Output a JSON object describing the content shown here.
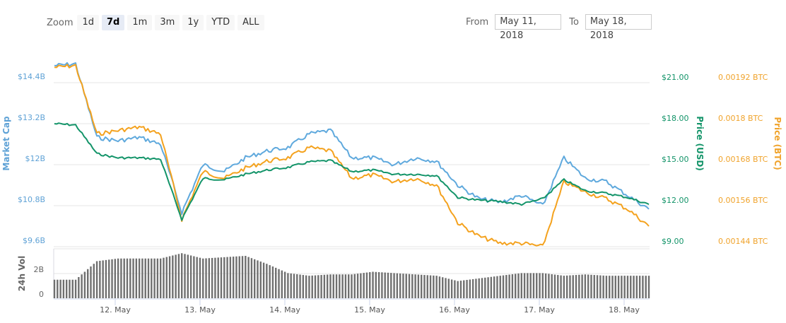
{
  "toolbar": {
    "zoom_label": "Zoom",
    "buttons": [
      "1d",
      "7d",
      "1m",
      "3m",
      "1y",
      "YTD",
      "ALL"
    ],
    "active": "7d"
  },
  "range": {
    "from_label": "From",
    "from_value": "May 11, 2018",
    "to_label": "To",
    "to_value": "May 18, 2018"
  },
  "colors": {
    "market_cap": "#5fa9dd",
    "price_usd": "#139469",
    "price_btc": "#f4a21e",
    "volume": "#6f6f6f",
    "grid": "#e6e6e6"
  },
  "chart_data": {
    "type": "line",
    "title": "",
    "x_ticks": [
      "12. May",
      "13. May",
      "14. May",
      "15. May",
      "16. May",
      "17. May",
      "18. May"
    ],
    "x": [
      "May 11 06:00",
      "May 11 12:00",
      "May 11 18:00",
      "May 12 00:00",
      "May 12 06:00",
      "May 12 12:00",
      "May 12 18:00",
      "May 13 00:00",
      "May 13 06:00",
      "May 13 12:00",
      "May 13 18:00",
      "May 14 00:00",
      "May 14 06:00",
      "May 14 12:00",
      "May 14 18:00",
      "May 15 00:00",
      "May 15 06:00",
      "May 15 12:00",
      "May 15 18:00",
      "May 16 00:00",
      "May 16 06:00",
      "May 16 12:00",
      "May 16 18:00",
      "May 17 00:00",
      "May 17 06:00",
      "May 17 12:00",
      "May 17 18:00",
      "May 18 00:00",
      "May 18 06:00"
    ],
    "axes": {
      "market_cap": {
        "label": "Market Cap",
        "ticks": [
          "$14.4B",
          "$13.2B",
          "$12B",
          "$10.8B",
          "$9.6B"
        ],
        "range": [
          9.6,
          14.4
        ],
        "unit": "B USD"
      },
      "price_usd": {
        "label": "Price (USD)",
        "ticks": [
          "$21.00",
          "$18.00",
          "$15.00",
          "$12.00",
          "$9.00"
        ],
        "range": [
          9,
          21
        ]
      },
      "price_btc": {
        "label": "Price (BTC)",
        "ticks": [
          "0.00192 BTC",
          "0.0018 BTC",
          "0.00168 BTC",
          "0.00156 BTC",
          "0.00144 BTC"
        ],
        "range": [
          0.00144,
          0.00192
        ]
      },
      "volume": {
        "label": "24h Vol",
        "ticks": [
          "2B",
          "0"
        ],
        "range": [
          0,
          4
        ]
      }
    },
    "series": [
      {
        "name": "Market Cap",
        "axis": "market_cap",
        "values": [
          14.9,
          14.95,
          12.8,
          12.7,
          12.8,
          12.6,
          10.6,
          12.0,
          11.8,
          12.2,
          12.4,
          12.5,
          12.9,
          13.0,
          12.2,
          12.2,
          12.0,
          12.2,
          12.1,
          11.4,
          11.0,
          10.9,
          11.1,
          10.8,
          12.2,
          11.6,
          11.5,
          11.1,
          10.7
        ],
        "note": "values in $B"
      },
      {
        "name": "Price (USD)",
        "axis": "price_usd",
        "values": [
          18.0,
          17.9,
          15.8,
          15.5,
          15.5,
          15.4,
          11.0,
          14.0,
          13.9,
          14.3,
          14.6,
          14.8,
          15.2,
          15.3,
          14.5,
          14.6,
          14.3,
          14.3,
          14.2,
          12.6,
          12.4,
          12.3,
          12.1,
          12.5,
          13.9,
          13.1,
          12.9,
          12.6,
          12.1
        ]
      },
      {
        "name": "Price (BTC)",
        "axis": "price_btc",
        "values": [
          0.001965,
          0.00197,
          0.00177,
          0.00178,
          0.00179,
          0.00177,
          0.00152,
          0.00166,
          0.00164,
          0.00167,
          0.00169,
          0.0017,
          0.00173,
          0.00172,
          0.00164,
          0.00165,
          0.00163,
          0.00164,
          0.00162,
          0.00151,
          0.00147,
          0.00145,
          0.00145,
          0.00144,
          0.00163,
          0.0016,
          0.00158,
          0.00155,
          0.0015
        ]
      },
      {
        "name": "24h Vol",
        "axis": "volume",
        "values": [
          1.4,
          1.4,
          2.8,
          3.0,
          3.0,
          3.0,
          3.4,
          3.0,
          3.1,
          3.2,
          2.6,
          1.9,
          1.7,
          1.8,
          1.8,
          2.0,
          1.9,
          1.8,
          1.7,
          1.3,
          1.5,
          1.7,
          1.9,
          1.9,
          1.7,
          1.8,
          1.7,
          1.7,
          1.7
        ],
        "note": "values in billions USD"
      }
    ],
    "grid": true,
    "legend": "none"
  }
}
